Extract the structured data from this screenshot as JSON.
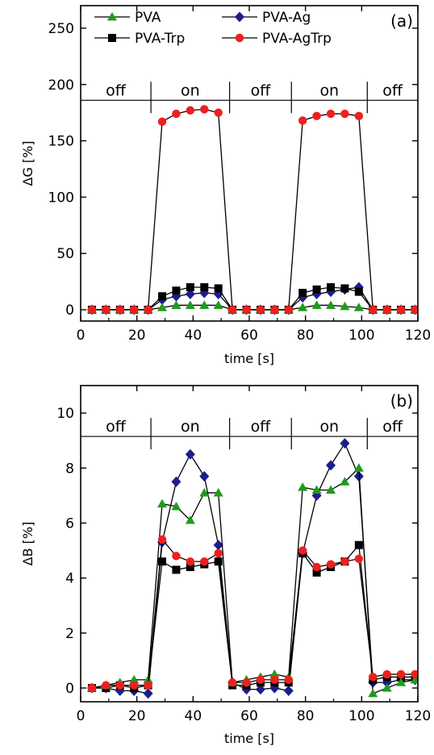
{
  "colors": {
    "PVA": "#1e9c1e",
    "PVA-Ag": "#1c1c8c",
    "PVA-Trp": "#000000",
    "PVA-AgTrp": "#f01e1e"
  },
  "chart_data": [
    {
      "type": "line",
      "panel_label": "(a)",
      "xlabel": "time [s]",
      "ylabel": "ΔG [%]",
      "xlim": [
        0,
        120
      ],
      "ylim": [
        -10,
        270
      ],
      "xticks": [
        0,
        20,
        40,
        60,
        80,
        100,
        120
      ],
      "yticks": [
        0,
        50,
        100,
        150,
        200,
        250
      ],
      "grid": false,
      "legend": "top-left, two columns",
      "threshold_line": 186,
      "states": [
        {
          "label": "off",
          "start": 0,
          "end": 25
        },
        {
          "label": "on",
          "start": 25,
          "end": 53
        },
        {
          "label": "off",
          "start": 53,
          "end": 75
        },
        {
          "label": "on",
          "start": 75,
          "end": 102
        },
        {
          "label": "off",
          "start": 102,
          "end": 120
        }
      ],
      "series": [
        {
          "name": "PVA",
          "marker": "triangle",
          "x": [
            4,
            9,
            14,
            19,
            24,
            29,
            34,
            39,
            44,
            49,
            54,
            59,
            64,
            69,
            74,
            79,
            84,
            89,
            94,
            99,
            104,
            109,
            114,
            119
          ],
          "y": [
            0,
            0,
            0,
            0,
            0,
            2,
            4,
            4,
            4,
            4,
            0,
            0,
            0,
            0,
            0,
            2,
            4,
            4,
            3,
            2,
            0,
            0,
            0,
            0
          ]
        },
        {
          "name": "PVA-Ag",
          "marker": "diamond",
          "x": [
            4,
            9,
            14,
            19,
            24,
            29,
            34,
            39,
            44,
            49,
            54,
            59,
            64,
            69,
            74,
            79,
            84,
            89,
            94,
            99,
            104,
            109,
            114,
            119
          ],
          "y": [
            0,
            0,
            0,
            0,
            0,
            9,
            12,
            14,
            15,
            14,
            0,
            0,
            0,
            0,
            0,
            11,
            14,
            16,
            18,
            20,
            0,
            0,
            0,
            0
          ]
        },
        {
          "name": "PVA-Trp",
          "marker": "square",
          "x": [
            4,
            9,
            14,
            19,
            24,
            29,
            34,
            39,
            44,
            49,
            54,
            59,
            64,
            69,
            74,
            79,
            84,
            89,
            94,
            99,
            104,
            109,
            114,
            119
          ],
          "y": [
            0,
            0,
            0,
            0,
            0,
            12,
            17,
            20,
            20,
            19,
            0,
            0,
            0,
            0,
            0,
            15,
            18,
            20,
            19,
            16,
            0,
            0,
            0,
            0
          ]
        },
        {
          "name": "PVA-AgTrp",
          "marker": "circle",
          "x": [
            4,
            9,
            14,
            19,
            24,
            29,
            34,
            39,
            44,
            49,
            54,
            59,
            64,
            69,
            74,
            79,
            84,
            89,
            94,
            99,
            104,
            109,
            114,
            119
          ],
          "y": [
            0,
            0,
            0,
            0,
            0,
            167,
            174,
            177,
            178,
            175,
            0,
            0,
            0,
            0,
            0,
            168,
            172,
            174,
            174,
            172,
            0,
            0,
            0,
            0
          ]
        }
      ]
    },
    {
      "type": "line",
      "panel_label": "(b)",
      "xlabel": "time [s]",
      "ylabel": "ΔB [%]",
      "xlim": [
        0,
        120
      ],
      "ylim": [
        -0.5,
        11
      ],
      "xticks": [
        0,
        20,
        40,
        60,
        80,
        100,
        120
      ],
      "yticks": [
        0,
        2,
        4,
        6,
        8,
        10
      ],
      "grid": false,
      "threshold_line": 9.15,
      "states": [
        {
          "label": "off",
          "start": 0,
          "end": 25
        },
        {
          "label": "on",
          "start": 25,
          "end": 53
        },
        {
          "label": "off",
          "start": 53,
          "end": 75
        },
        {
          "label": "on",
          "start": 75,
          "end": 102
        },
        {
          "label": "off",
          "start": 102,
          "end": 120
        }
      ],
      "series": [
        {
          "name": "PVA",
          "marker": "triangle",
          "x": [
            4,
            9,
            14,
            19,
            24,
            29,
            34,
            39,
            44,
            49,
            54,
            59,
            64,
            69,
            74,
            79,
            84,
            89,
            94,
            99,
            104,
            109,
            114,
            119
          ],
          "y": [
            0,
            0.1,
            0.2,
            0.3,
            0.3,
            6.7,
            6.6,
            6.1,
            7.1,
            7.1,
            0.2,
            0.3,
            0.4,
            0.5,
            0.4,
            7.3,
            7.2,
            7.2,
            7.5,
            8.0,
            -0.2,
            0,
            0.2,
            0.3
          ]
        },
        {
          "name": "PVA-Ag",
          "marker": "diamond",
          "x": [
            4,
            9,
            14,
            19,
            24,
            29,
            34,
            39,
            44,
            49,
            54,
            59,
            64,
            69,
            74,
            79,
            84,
            89,
            94,
            99,
            104,
            109,
            114,
            119
          ],
          "y": [
            0,
            0,
            -0.1,
            -0.1,
            -0.2,
            5.3,
            7.5,
            8.5,
            7.7,
            5.2,
            0.2,
            -0.05,
            -0.05,
            0,
            -0.1,
            4.9,
            7.0,
            8.1,
            8.9,
            7.7,
            0.2,
            0.2,
            0.3,
            0.3
          ]
        },
        {
          "name": "PVA-Trp",
          "marker": "square",
          "x": [
            4,
            9,
            14,
            19,
            24,
            29,
            34,
            39,
            44,
            49,
            54,
            59,
            64,
            69,
            74,
            79,
            84,
            89,
            94,
            99,
            104,
            109,
            114,
            119
          ],
          "y": [
            0,
            0,
            0.1,
            0,
            0.1,
            4.6,
            4.3,
            4.4,
            4.5,
            4.6,
            0.1,
            0.1,
            0.2,
            0.2,
            0.2,
            4.9,
            4.2,
            4.4,
            4.6,
            5.2,
            0.3,
            0.4,
            0.4,
            0.4
          ]
        },
        {
          "name": "PVA-AgTrp",
          "marker": "circle",
          "x": [
            4,
            9,
            14,
            19,
            24,
            29,
            34,
            39,
            44,
            49,
            54,
            59,
            64,
            69,
            74,
            79,
            84,
            89,
            94,
            99,
            104,
            109,
            114,
            119
          ],
          "y": [
            0,
            0.1,
            0.1,
            0.1,
            0.1,
            5.4,
            4.8,
            4.6,
            4.6,
            4.9,
            0.2,
            0.2,
            0.3,
            0.3,
            0.3,
            5.0,
            4.4,
            4.5,
            4.6,
            4.7,
            0.4,
            0.5,
            0.5,
            0.5
          ]
        }
      ]
    }
  ]
}
